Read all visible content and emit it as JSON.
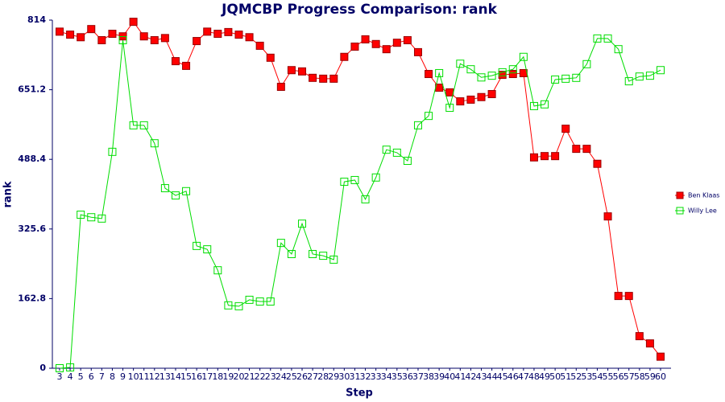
{
  "chart_data": {
    "type": "line",
    "title": "JQMCBP Progress Comparison: rank",
    "x_label": "Step",
    "y_label": "rank",
    "categories": [
      "3",
      "4",
      "5",
      "6",
      "7",
      "8",
      "9",
      "10",
      "11",
      "12",
      "13",
      "14",
      "15",
      "16",
      "17",
      "18",
      "19",
      "20",
      "21",
      "22",
      "23",
      "24",
      "25",
      "26",
      "27",
      "28",
      "29",
      "30",
      "31",
      "32",
      "33",
      "34",
      "35",
      "36",
      "37",
      "38",
      "39",
      "40",
      "41",
      "42",
      "43",
      "44",
      "45",
      "46",
      "47",
      "48",
      "49",
      "50",
      "51",
      "52",
      "53",
      "54",
      "55",
      "56",
      "57",
      "58",
      "59",
      "60"
    ],
    "series": [
      {
        "name": "Ben Klaas",
        "color": "#ff0000",
        "marker": "filled",
        "values": [
          787,
          780,
          774,
          793,
          767,
          782,
          776,
          810,
          776,
          767,
          772,
          718,
          707,
          765,
          787,
          782,
          786,
          780,
          774,
          754,
          726,
          658,
          697,
          694,
          679,
          677,
          677,
          728,
          752,
          769,
          758,
          746,
          761,
          767,
          739,
          688,
          656,
          645,
          624,
          628,
          634,
          641,
          686,
          688,
          690,
          493,
          496,
          496,
          560,
          513,
          513,
          478,
          355,
          169,
          169,
          75,
          58,
          27
        ]
      },
      {
        "name": "Willy Lee",
        "color": "#00dd00",
        "marker": "hollow",
        "values": [
          0,
          2,
          359,
          353,
          350,
          506,
          767,
          568,
          568,
          526,
          421,
          404,
          414,
          286,
          278,
          229,
          147,
          145,
          160,
          156,
          156,
          293,
          267,
          338,
          267,
          263,
          254,
          436,
          440,
          395,
          446,
          511,
          504,
          485,
          568,
          590,
          690,
          609,
          712,
          699,
          680,
          684,
          692,
          699,
          728,
          613,
          617,
          675,
          677,
          679,
          711,
          771,
          771,
          746,
          671,
          682,
          684,
          697
        ]
      }
    ],
    "ylim": [
      0,
      814
    ],
    "yticks": [
      0,
      162.8,
      325.6,
      488.4,
      651.2,
      814
    ],
    "legend": "right"
  }
}
